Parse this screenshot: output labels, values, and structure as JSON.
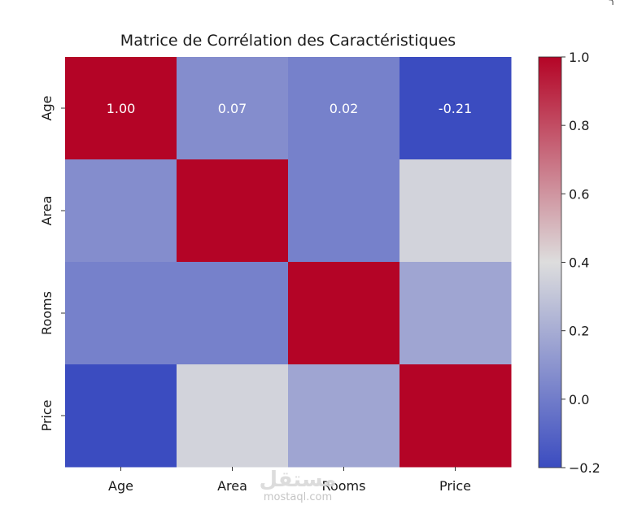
{
  "corner_mark": "ר",
  "watermark": {
    "arabic": "مستقل",
    "latin": "mostaql.com"
  },
  "chart_data": {
    "type": "heatmap",
    "title": "Matrice de Corrélation des Caractéristiques",
    "x_labels": [
      "Age",
      "Area",
      "Rooms",
      "Price"
    ],
    "y_labels": [
      "Age",
      "Area",
      "Rooms",
      "Price"
    ],
    "values": [
      [
        1.0,
        0.07,
        0.02,
        -0.21
      ],
      [
        0.07,
        1.0,
        0.02,
        0.36
      ],
      [
        0.02,
        0.02,
        1.0,
        0.17
      ],
      [
        -0.21,
        0.36,
        0.17,
        1.0
      ]
    ],
    "annotated_row": 0,
    "annotation_format": "2f",
    "colormap": "coolwarm",
    "colorbar": {
      "range": [
        -0.2,
        1.0
      ],
      "ticks": [
        1.0,
        0.8,
        0.6,
        0.4,
        0.2,
        0.0,
        -0.2
      ],
      "tick_labels": [
        "1.0",
        "0.8",
        "0.6",
        "0.4",
        "0.2",
        "0.0",
        "−0.2"
      ]
    },
    "colors": {
      "low": "#3b4cc0",
      "mid": "#dddddd",
      "high": "#b40426"
    }
  }
}
